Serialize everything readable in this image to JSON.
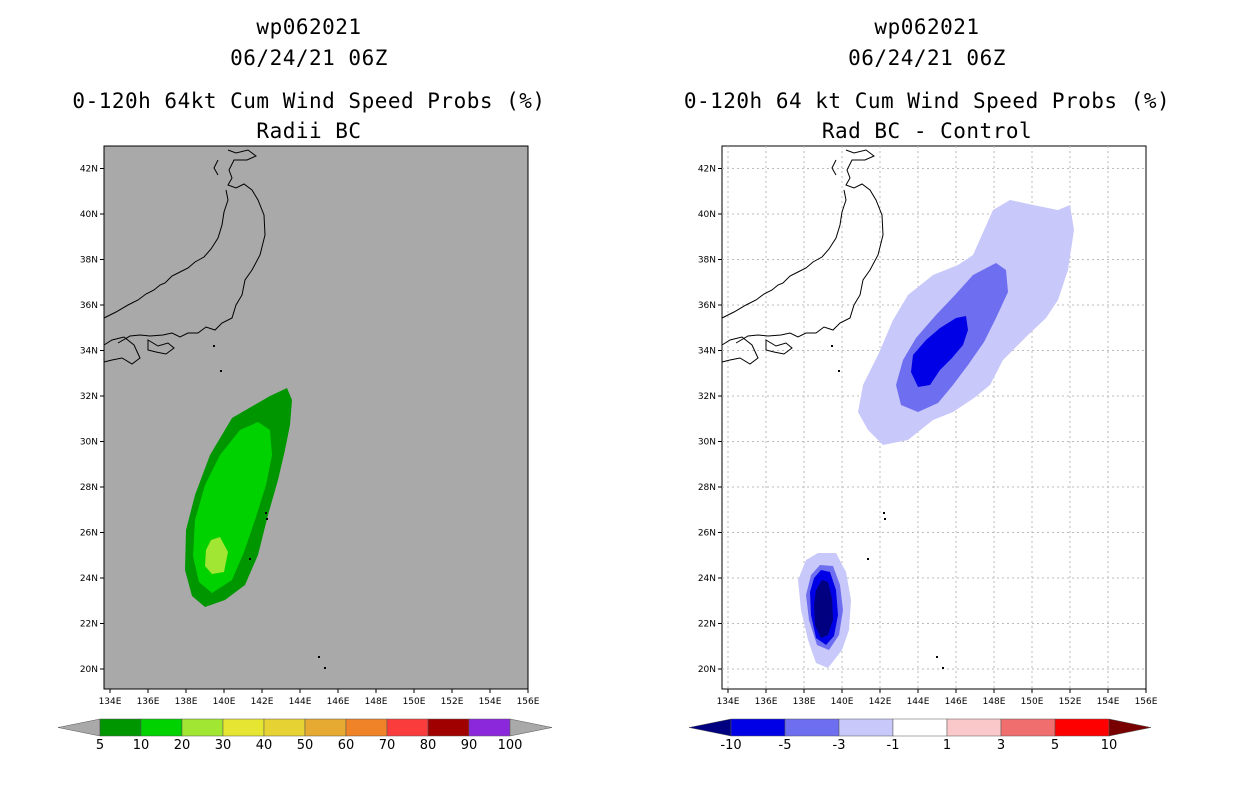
{
  "left": {
    "title_line1": "wp062021",
    "title_line2": "06/24/21 06Z",
    "title_line3": "0-120h 64kt Cum Wind Speed Probs (%)",
    "title_line4": "Radii BC",
    "map_background": "#a9a9a9",
    "colorbar": {
      "under_color": "#a9a9a9",
      "over_color": "#a9a9a9",
      "colors": [
        "#009600",
        "#00d200",
        "#a0e632",
        "#e6e632",
        "#e6d232",
        "#e6aa32",
        "#f08228",
        "#fa3c3c",
        "#a00000",
        "#8c28dc"
      ],
      "labels": [
        "5",
        "10",
        "20",
        "30",
        "40",
        "50",
        "60",
        "70",
        "80",
        "90",
        "100"
      ]
    }
  },
  "right": {
    "title_line1": "wp062021",
    "title_line2": "06/24/21 06Z",
    "title_line3": "0-120h 64 kt Cum Wind Speed Probs (%)",
    "title_line4": "Rad BC - Control",
    "map_background": "#ffffff",
    "colorbar": {
      "under_color": "#000080",
      "over_color": "#780000",
      "colors": [
        "#0000e6",
        "#6e6ef0",
        "#c8c8fa",
        "#ffffff",
        "#fac8c8",
        "#f06e6e",
        "#ff0000"
      ],
      "labels": [
        "-10",
        "-5",
        "-3",
        "-1",
        "1",
        "3",
        "5",
        "10"
      ]
    }
  },
  "axes": {
    "lon_labels": [
      "134E",
      "136E",
      "138E",
      "140E",
      "142E",
      "144E",
      "146E",
      "148E",
      "150E",
      "152E",
      "154E",
      "156E"
    ],
    "lat_labels": [
      "20N",
      "22N",
      "24N",
      "26N",
      "28N",
      "30N",
      "32N",
      "34N",
      "36N",
      "38N",
      "40N",
      "42N"
    ]
  }
}
